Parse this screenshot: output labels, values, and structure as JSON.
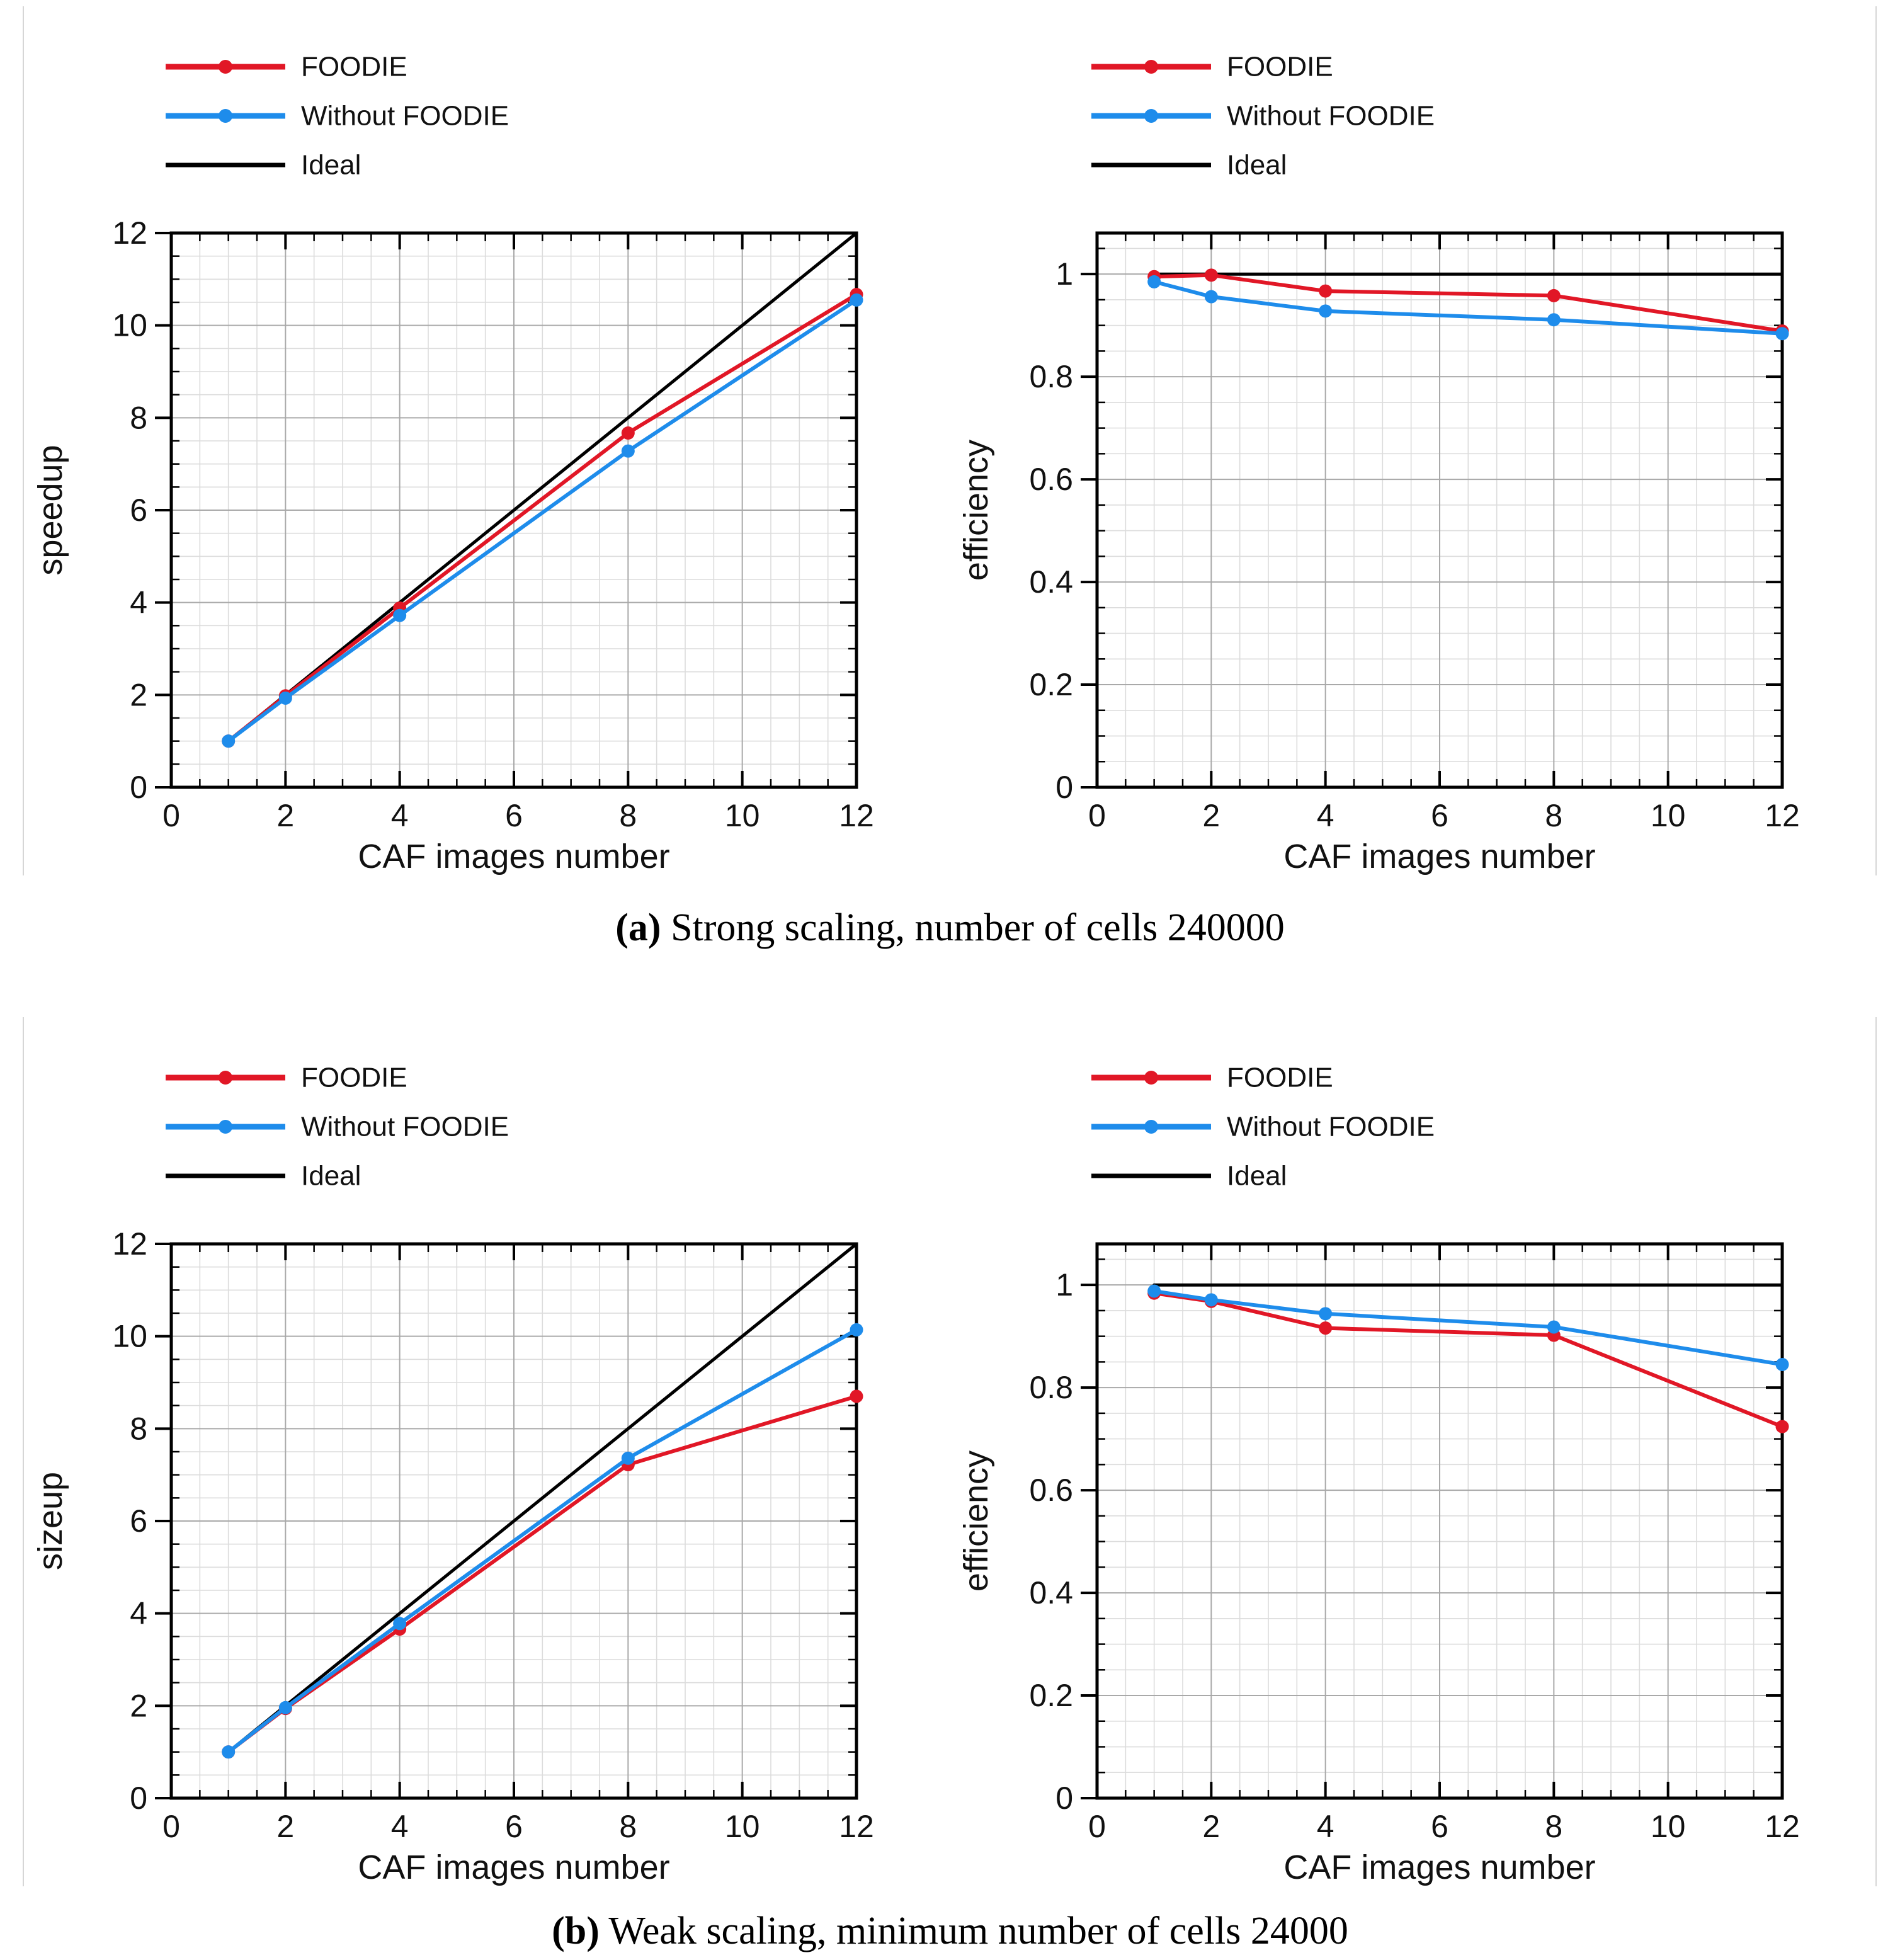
{
  "page": {
    "background": "#ffffff"
  },
  "colors": {
    "foodie": "#e11726",
    "without_foodie": "#1e8ceb",
    "ideal": "#000000",
    "frame": "#000000",
    "grid_major": "#a9a9a9",
    "grid_minor": "#dcdcdc",
    "figure_border": "#d6d6d6",
    "text": "#111111"
  },
  "legend_labels": [
    "FOODIE",
    "Without FOODIE",
    "Ideal"
  ],
  "figures": [
    {
      "id": "a",
      "caption": {
        "tag": "(a)",
        "text": "Strong scaling, number of cells 240000"
      },
      "chart_indexes": [
        0,
        1
      ]
    },
    {
      "id": "b",
      "caption": {
        "tag": "(b)",
        "text": "Weak scaling, minimum number of cells 24000"
      },
      "chart_indexes": [
        2,
        3
      ]
    }
  ],
  "chart_data": [
    {
      "type": "line",
      "title": "",
      "xlabel": "CAF images number",
      "ylabel": "speedup",
      "xlim": [
        0,
        12
      ],
      "ylim": [
        0,
        12
      ],
      "xticks": [
        0,
        2,
        4,
        6,
        8,
        10,
        12
      ],
      "xtick_labels": [
        "0",
        "2",
        "4",
        "6",
        "8",
        "10",
        "12"
      ],
      "yticks": [
        0,
        2,
        4,
        6,
        8,
        10,
        12
      ],
      "ytick_labels": [
        "0",
        "2",
        "4",
        "6",
        "8",
        "10",
        "12"
      ],
      "x_minor_step": 0.5,
      "y_minor_step": 0.5,
      "grid": true,
      "legend_position": "top-left",
      "x": [
        1,
        2,
        4,
        8,
        12
      ],
      "series": [
        {
          "name": "FOODIE",
          "color_key": "foodie",
          "marker": true,
          "values": [
            1.0,
            1.98,
            3.88,
            7.67,
            10.67
          ]
        },
        {
          "name": "Without FOODIE",
          "color_key": "without_foodie",
          "marker": true,
          "values": [
            1.0,
            1.93,
            3.72,
            7.28,
            10.55
          ]
        },
        {
          "name": "Ideal",
          "color_key": "ideal",
          "marker": false,
          "x": [
            1,
            12
          ],
          "values": [
            1,
            12
          ]
        }
      ]
    },
    {
      "type": "line",
      "title": "",
      "xlabel": "CAF images number",
      "ylabel": "efficiency",
      "xlim": [
        0,
        12
      ],
      "ylim": [
        0,
        1.08
      ],
      "xticks": [
        0,
        2,
        4,
        6,
        8,
        10,
        12
      ],
      "xtick_labels": [
        "0",
        "2",
        "4",
        "6",
        "8",
        "10",
        "12"
      ],
      "yticks": [
        0,
        0.2,
        0.4,
        0.6,
        0.8,
        1
      ],
      "ytick_labels": [
        "0",
        "0.2",
        "0.4",
        "0.6",
        "0.8",
        "1"
      ],
      "x_minor_step": 0.5,
      "y_minor_step": 0.05,
      "grid": true,
      "legend_position": "top-left",
      "x": [
        1,
        2,
        4,
        8,
        12
      ],
      "series": [
        {
          "name": "FOODIE",
          "color_key": "foodie",
          "marker": true,
          "values": [
            0.995,
            0.998,
            0.967,
            0.958,
            0.889
          ]
        },
        {
          "name": "Without FOODIE",
          "color_key": "without_foodie",
          "marker": true,
          "values": [
            0.985,
            0.956,
            0.928,
            0.911,
            0.884
          ]
        },
        {
          "name": "Ideal",
          "color_key": "ideal",
          "marker": false,
          "x": [
            1,
            12
          ],
          "values": [
            1,
            1
          ]
        }
      ]
    },
    {
      "type": "line",
      "title": "",
      "xlabel": "CAF images number",
      "ylabel": "sizeup",
      "xlim": [
        0,
        12
      ],
      "ylim": [
        0,
        12
      ],
      "xticks": [
        0,
        2,
        4,
        6,
        8,
        10,
        12
      ],
      "xtick_labels": [
        "0",
        "2",
        "4",
        "6",
        "8",
        "10",
        "12"
      ],
      "yticks": [
        0,
        2,
        4,
        6,
        8,
        10,
        12
      ],
      "ytick_labels": [
        "0",
        "2",
        "4",
        "6",
        "8",
        "10",
        "12"
      ],
      "x_minor_step": 0.5,
      "y_minor_step": 0.5,
      "grid": true,
      "legend_position": "top-left",
      "x": [
        1,
        2,
        4,
        8,
        12
      ],
      "series": [
        {
          "name": "FOODIE",
          "color_key": "foodie",
          "marker": true,
          "values": [
            1.0,
            1.94,
            3.66,
            7.22,
            8.7
          ]
        },
        {
          "name": "Without FOODIE",
          "color_key": "without_foodie",
          "marker": true,
          "values": [
            1.0,
            1.96,
            3.78,
            7.36,
            10.14
          ]
        },
        {
          "name": "Ideal",
          "color_key": "ideal",
          "marker": false,
          "x": [
            1,
            12
          ],
          "values": [
            1,
            12
          ]
        }
      ]
    },
    {
      "type": "line",
      "title": "",
      "xlabel": "CAF images number",
      "ylabel": "efficiency",
      "xlim": [
        0,
        12
      ],
      "ylim": [
        0,
        1.08
      ],
      "xticks": [
        0,
        2,
        4,
        6,
        8,
        10,
        12
      ],
      "xtick_labels": [
        "0",
        "2",
        "4",
        "6",
        "8",
        "10",
        "12"
      ],
      "yticks": [
        0,
        0.2,
        0.4,
        0.6,
        0.8,
        1
      ],
      "ytick_labels": [
        "0",
        "0.2",
        "0.4",
        "0.6",
        "0.8",
        "1"
      ],
      "x_minor_step": 0.5,
      "y_minor_step": 0.05,
      "grid": true,
      "legend_position": "top-left",
      "x": [
        1,
        2,
        4,
        8,
        12
      ],
      "series": [
        {
          "name": "FOODIE",
          "color_key": "foodie",
          "marker": true,
          "values": [
            0.984,
            0.968,
            0.916,
            0.902,
            0.724
          ]
        },
        {
          "name": "Without FOODIE",
          "color_key": "without_foodie",
          "marker": true,
          "values": [
            0.988,
            0.971,
            0.944,
            0.918,
            0.845
          ]
        },
        {
          "name": "Ideal",
          "color_key": "ideal",
          "marker": false,
          "x": [
            1,
            12
          ],
          "values": [
            1,
            1
          ]
        }
      ]
    }
  ]
}
